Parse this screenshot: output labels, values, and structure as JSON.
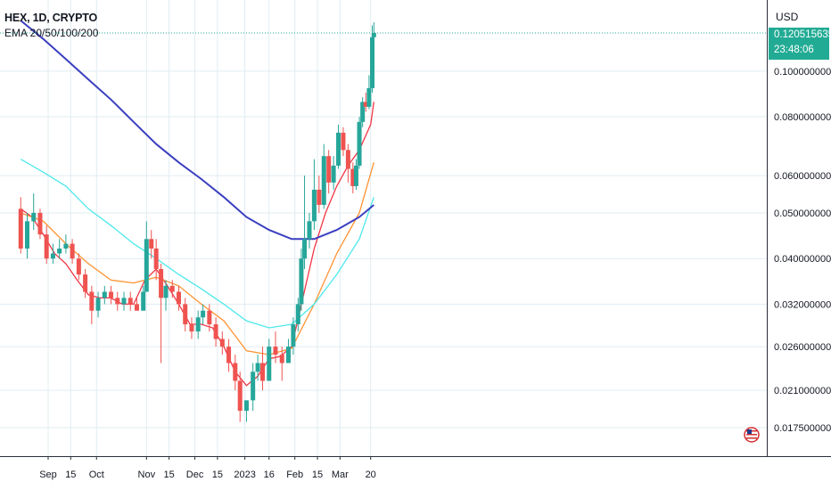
{
  "header": {
    "symbol": "HEX, 1D, CRYPTO",
    "indicator": "EMA 20/50/100/200"
  },
  "axis": {
    "unit": "USD"
  },
  "price_tag": {
    "price": "0.1205156358",
    "countdown": "23:48:06"
  },
  "colors": {
    "up": "#26a69a",
    "down": "#ef5350",
    "ema20": "#f23645",
    "ema50": "#ff9332",
    "ema100": "#4ee8ec",
    "ema200": "#3a3fbf",
    "grid": "#e1ecf2",
    "tag": "#22ab94"
  },
  "chart_data": {
    "type": "line",
    "title": "HEX, 1D, CRYPTO",
    "xlabel": "",
    "ylabel": "USD",
    "scale": "log",
    "ylim": [
      0.0155,
      0.14
    ],
    "grid": true,
    "y_ticks": [
      "0.1000000000",
      "0.0800000000",
      "0.0600000000",
      "0.0500000000",
      "0.0400000000",
      "0.0320000000",
      "0.0260000000",
      "0.0210000000",
      "0.0175000000"
    ],
    "x_ticks": [
      {
        "label": "Sep",
        "date": "2022-09-01"
      },
      {
        "label": "15",
        "date": "2022-09-15"
      },
      {
        "label": "Oct",
        "date": "2022-10-01"
      },
      {
        "label": "Nov",
        "date": "2022-11-01"
      },
      {
        "label": "15",
        "date": "2022-11-15"
      },
      {
        "label": "Dec",
        "date": "2022-12-01"
      },
      {
        "label": "15",
        "date": "2022-12-15"
      },
      {
        "label": "2023",
        "date": "2023-01-01"
      },
      {
        "label": "16",
        "date": "2023-01-16"
      },
      {
        "label": "Feb",
        "date": "2023-02-01"
      },
      {
        "label": "15",
        "date": "2023-02-15"
      },
      {
        "label": "Mar",
        "date": "2023-03-01"
      },
      {
        "label": "20",
        "date": "2023-03-20"
      }
    ],
    "series": [
      {
        "name": "EMA 20",
        "key": "ema20",
        "points": [
          [
            "2022-08-15",
            0.051
          ],
          [
            "2022-08-22",
            0.049
          ],
          [
            "2022-08-29",
            0.045
          ],
          [
            "2022-09-05",
            0.041
          ],
          [
            "2022-09-12",
            0.039
          ],
          [
            "2022-09-19",
            0.036
          ],
          [
            "2022-09-26",
            0.0335
          ],
          [
            "2022-10-03",
            0.033
          ],
          [
            "2022-10-10",
            0.033
          ],
          [
            "2022-10-17",
            0.032
          ],
          [
            "2022-10-24",
            0.032
          ],
          [
            "2022-10-31",
            0.036
          ],
          [
            "2022-11-07",
            0.038
          ],
          [
            "2022-11-14",
            0.035
          ],
          [
            "2022-11-21",
            0.032
          ],
          [
            "2022-11-28",
            0.029
          ],
          [
            "2022-12-05",
            0.029
          ],
          [
            "2022-12-12",
            0.0285
          ],
          [
            "2022-12-19",
            0.026
          ],
          [
            "2022-12-26",
            0.023
          ],
          [
            "2023-01-02",
            0.0215
          ],
          [
            "2023-01-09",
            0.0225
          ],
          [
            "2023-01-16",
            0.0245
          ],
          [
            "2023-01-23",
            0.0248
          ],
          [
            "2023-01-30",
            0.026
          ],
          [
            "2023-02-06",
            0.033
          ],
          [
            "2023-02-13",
            0.042
          ],
          [
            "2023-02-20",
            0.05
          ],
          [
            "2023-02-27",
            0.057
          ],
          [
            "2023-03-06",
            0.063
          ],
          [
            "2023-03-13",
            0.068
          ],
          [
            "2023-03-20",
            0.077
          ],
          [
            "2023-03-22",
            0.086
          ]
        ]
      },
      {
        "name": "EMA 50",
        "key": "ema50",
        "points": [
          [
            "2022-08-15",
            0.05
          ],
          [
            "2022-08-29",
            0.048
          ],
          [
            "2022-09-12",
            0.043
          ],
          [
            "2022-09-26",
            0.039
          ],
          [
            "2022-10-10",
            0.036
          ],
          [
            "2022-10-24",
            0.0355
          ],
          [
            "2022-11-07",
            0.0365
          ],
          [
            "2022-11-21",
            0.035
          ],
          [
            "2022-12-05",
            0.032
          ],
          [
            "2022-12-19",
            0.0295
          ],
          [
            "2023-01-02",
            0.0255
          ],
          [
            "2023-01-16",
            0.025
          ],
          [
            "2023-01-30",
            0.0258
          ],
          [
            "2023-02-13",
            0.032
          ],
          [
            "2023-02-27",
            0.041
          ],
          [
            "2023-03-13",
            0.05
          ],
          [
            "2023-03-22",
            0.064
          ]
        ]
      },
      {
        "name": "EMA 100",
        "key": "ema100",
        "points": [
          [
            "2022-08-15",
            0.065
          ],
          [
            "2022-08-29",
            0.061
          ],
          [
            "2022-09-12",
            0.057
          ],
          [
            "2022-09-26",
            0.051
          ],
          [
            "2022-10-10",
            0.047
          ],
          [
            "2022-10-24",
            0.043
          ],
          [
            "2022-11-07",
            0.04
          ],
          [
            "2022-11-21",
            0.037
          ],
          [
            "2022-12-05",
            0.0345
          ],
          [
            "2022-12-19",
            0.032
          ],
          [
            "2023-01-02",
            0.0295
          ],
          [
            "2023-01-16",
            0.0285
          ],
          [
            "2023-01-30",
            0.029
          ],
          [
            "2023-02-13",
            0.032
          ],
          [
            "2023-02-27",
            0.037
          ],
          [
            "2023-03-13",
            0.044
          ],
          [
            "2023-03-22",
            0.054
          ]
        ]
      },
      {
        "name": "EMA 200",
        "key": "ema200",
        "points": [
          [
            "2022-08-15",
            0.128
          ],
          [
            "2022-08-29",
            0.117
          ],
          [
            "2022-09-12",
            0.106
          ],
          [
            "2022-09-26",
            0.096
          ],
          [
            "2022-10-10",
            0.087
          ],
          [
            "2022-10-24",
            0.078
          ],
          [
            "2022-11-07",
            0.07
          ],
          [
            "2022-11-21",
            0.064
          ],
          [
            "2022-12-05",
            0.059
          ],
          [
            "2022-12-19",
            0.054
          ],
          [
            "2023-01-02",
            0.049
          ],
          [
            "2023-01-16",
            0.046
          ],
          [
            "2023-01-30",
            0.044
          ],
          [
            "2023-02-13",
            0.044
          ],
          [
            "2023-02-27",
            0.046
          ],
          [
            "2023-03-13",
            0.049
          ],
          [
            "2023-03-22",
            0.052
          ]
        ]
      }
    ],
    "candles": [
      [
        "2022-08-15",
        0.051,
        0.054,
        0.041,
        0.042
      ],
      [
        "2022-08-19",
        0.042,
        0.05,
        0.04,
        0.048
      ],
      [
        "2022-08-23",
        0.048,
        0.055,
        0.046,
        0.05
      ],
      [
        "2022-08-27",
        0.05,
        0.051,
        0.044,
        0.045
      ],
      [
        "2022-08-31",
        0.045,
        0.047,
        0.039,
        0.04
      ],
      [
        "2022-09-04",
        0.04,
        0.043,
        0.039,
        0.041
      ],
      [
        "2022-09-08",
        0.041,
        0.044,
        0.04,
        0.042
      ],
      [
        "2022-09-12",
        0.042,
        0.045,
        0.041,
        0.043
      ],
      [
        "2022-09-16",
        0.043,
        0.044,
        0.039,
        0.04
      ],
      [
        "2022-09-20",
        0.04,
        0.041,
        0.036,
        0.037
      ],
      [
        "2022-09-24",
        0.037,
        0.038,
        0.033,
        0.034
      ],
      [
        "2022-09-28",
        0.034,
        0.035,
        0.029,
        0.031
      ],
      [
        "2022-10-02",
        0.031,
        0.034,
        0.03,
        0.033
      ],
      [
        "2022-10-06",
        0.033,
        0.035,
        0.032,
        0.034
      ],
      [
        "2022-10-10",
        0.034,
        0.035,
        0.032,
        0.033
      ],
      [
        "2022-10-14",
        0.033,
        0.034,
        0.031,
        0.032
      ],
      [
        "2022-10-18",
        0.032,
        0.034,
        0.031,
        0.033
      ],
      [
        "2022-10-22",
        0.033,
        0.034,
        0.031,
        0.032
      ],
      [
        "2022-10-26",
        0.032,
        0.033,
        0.031,
        0.031
      ],
      [
        "2022-10-30",
        0.031,
        0.035,
        0.031,
        0.034
      ],
      [
        "2022-11-01",
        0.034,
        0.048,
        0.034,
        0.044
      ],
      [
        "2022-11-04",
        0.044,
        0.046,
        0.04,
        0.042
      ],
      [
        "2022-11-07",
        0.042,
        0.044,
        0.036,
        0.038
      ],
      [
        "2022-11-10",
        0.038,
        0.039,
        0.024,
        0.033
      ],
      [
        "2022-11-13",
        0.033,
        0.036,
        0.031,
        0.035
      ],
      [
        "2022-11-17",
        0.035,
        0.036,
        0.033,
        0.034
      ],
      [
        "2022-11-21",
        0.034,
        0.035,
        0.031,
        0.032
      ],
      [
        "2022-11-25",
        0.032,
        0.033,
        0.028,
        0.029
      ],
      [
        "2022-11-29",
        0.029,
        0.03,
        0.027,
        0.028
      ],
      [
        "2022-12-03",
        0.028,
        0.031,
        0.027,
        0.03
      ],
      [
        "2022-12-06",
        0.03,
        0.032,
        0.029,
        0.031
      ],
      [
        "2022-12-10",
        0.031,
        0.032,
        0.028,
        0.029
      ],
      [
        "2022-12-14",
        0.029,
        0.03,
        0.026,
        0.027
      ],
      [
        "2022-12-18",
        0.027,
        0.028,
        0.025,
        0.026
      ],
      [
        "2022-12-22",
        0.026,
        0.027,
        0.023,
        0.024
      ],
      [
        "2022-12-26",
        0.024,
        0.025,
        0.021,
        0.022
      ],
      [
        "2022-12-29",
        0.022,
        0.023,
        0.018,
        0.019
      ],
      [
        "2023-01-02",
        0.019,
        0.02,
        0.018,
        0.02
      ],
      [
        "2023-01-06",
        0.02,
        0.024,
        0.019,
        0.023
      ],
      [
        "2023-01-09",
        0.023,
        0.025,
        0.022,
        0.024
      ],
      [
        "2023-01-12",
        0.024,
        0.026,
        0.021,
        0.022
      ],
      [
        "2023-01-16",
        0.022,
        0.027,
        0.022,
        0.026
      ],
      [
        "2023-01-20",
        0.026,
        0.028,
        0.024,
        0.025
      ],
      [
        "2023-01-24",
        0.025,
        0.026,
        0.022,
        0.024
      ],
      [
        "2023-01-28",
        0.024,
        0.027,
        0.024,
        0.026
      ],
      [
        "2023-01-31",
        0.026,
        0.03,
        0.025,
        0.029
      ],
      [
        "2023-02-03",
        0.029,
        0.033,
        0.028,
        0.032
      ],
      [
        "2023-02-05",
        0.032,
        0.042,
        0.031,
        0.04
      ],
      [
        "2023-02-07",
        0.04,
        0.06,
        0.038,
        0.044
      ],
      [
        "2023-02-10",
        0.044,
        0.05,
        0.042,
        0.048
      ],
      [
        "2023-02-13",
        0.048,
        0.065,
        0.046,
        0.056
      ],
      [
        "2023-02-16",
        0.056,
        0.06,
        0.05,
        0.052
      ],
      [
        "2023-02-19",
        0.052,
        0.07,
        0.051,
        0.066
      ],
      [
        "2023-02-22",
        0.066,
        0.068,
        0.055,
        0.058
      ],
      [
        "2023-02-25",
        0.058,
        0.066,
        0.056,
        0.063
      ],
      [
        "2023-02-28",
        0.063,
        0.077,
        0.062,
        0.074
      ],
      [
        "2023-03-03",
        0.074,
        0.076,
        0.066,
        0.068
      ],
      [
        "2023-03-06",
        0.068,
        0.07,
        0.058,
        0.062
      ],
      [
        "2023-03-09",
        0.062,
        0.064,
        0.055,
        0.057
      ],
      [
        "2023-03-11",
        0.057,
        0.065,
        0.056,
        0.063
      ],
      [
        "2023-03-13",
        0.063,
        0.08,
        0.062,
        0.078
      ],
      [
        "2023-03-15",
        0.078,
        0.088,
        0.076,
        0.086
      ],
      [
        "2023-03-17",
        0.086,
        0.09,
        0.082,
        0.084
      ],
      [
        "2023-03-19",
        0.084,
        0.098,
        0.083,
        0.092
      ],
      [
        "2023-03-21",
        0.092,
        0.125,
        0.09,
        0.118
      ],
      [
        "2023-03-22",
        0.118,
        0.127,
        0.116,
        0.1205
      ]
    ]
  }
}
